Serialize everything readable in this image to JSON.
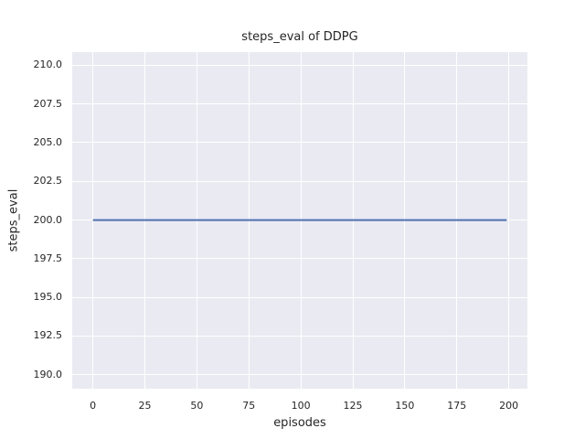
{
  "figure": {
    "background": "#ffffff"
  },
  "chart_data": {
    "type": "line",
    "title": "steps_eval of DDPG",
    "xlabel": "episodes",
    "ylabel": "steps_eval",
    "xlim": [
      -9.95,
      208.95
    ],
    "ylim": [
      189.1,
      210.85
    ],
    "xtick_labels": [
      "0",
      "25",
      "50",
      "75",
      "100",
      "125",
      "150",
      "175",
      "200"
    ],
    "ytick_labels": [
      "190.0",
      "192.5",
      "195.0",
      "197.5",
      "200.0",
      "202.5",
      "205.0",
      "207.5",
      "210.0"
    ],
    "grid": true,
    "legend_visible": false,
    "axes_background": "#eaeaf2",
    "grid_color": "#ffffff",
    "text_color": "#262626",
    "series": [
      {
        "name": "steps_eval",
        "color": "#4c72b0",
        "x": [
          0,
          199
        ],
        "y": [
          200,
          200
        ]
      }
    ]
  }
}
